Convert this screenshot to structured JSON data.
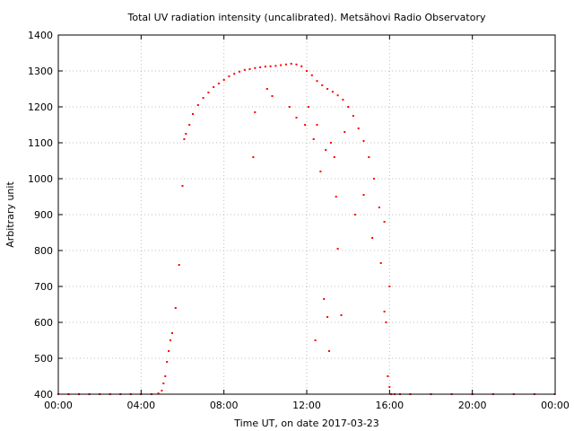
{
  "chart_data": {
    "type": "scatter",
    "title": "Total UV radiation intensity (uncalibrated). Metsähovi Radio Observatory",
    "xlabel": "Time UT, on date 2017-03-23",
    "ylabel": "Arbitrary unit",
    "xlim": [
      "00:00",
      "24:00"
    ],
    "ylim": [
      400,
      1400
    ],
    "xticks": [
      "00:00",
      "04:00",
      "08:00",
      "12:00",
      "16:00",
      "20:00",
      "00:00"
    ],
    "yticks": [
      400,
      500,
      600,
      700,
      800,
      900,
      1000,
      1100,
      1200,
      1300,
      1400
    ],
    "grid": true,
    "legend": "none",
    "marker_color": "#ff0000",
    "series": [
      {
        "x": [
          "00:00",
          "00:30",
          "01:00",
          "01:30",
          "02:00",
          "02:30",
          "03:00",
          "03:30",
          "04:00",
          "04:30",
          "04:50",
          "05:00",
          "05:10",
          "05:20",
          "05:30",
          "05:40",
          "05:50",
          "06:00",
          "06:05",
          "06:10",
          "06:20",
          "06:30",
          "06:45",
          "07:00",
          "07:15",
          "07:30",
          "07:45",
          "08:00",
          "08:15",
          "08:30",
          "08:45",
          "09:00",
          "09:15",
          "09:30",
          "09:45",
          "10:00",
          "10:15",
          "10:30",
          "10:45",
          "11:00",
          "11:15",
          "11:30",
          "11:45",
          "12:00",
          "12:15",
          "12:30",
          "12:45",
          "13:00",
          "13:15",
          "13:30",
          "13:45",
          "14:00",
          "14:15",
          "14:30",
          "14:45",
          "15:00",
          "15:15",
          "15:30",
          "15:45",
          "16:00",
          "16:15",
          "16:30",
          "17:00",
          "18:00",
          "19:00",
          "20:00",
          "21:00",
          "22:00",
          "23:00",
          "23:59",
          "05:05",
          "05:15",
          "05:25",
          "09:25",
          "09:30",
          "10:05",
          "10:20",
          "11:10",
          "11:30",
          "11:55",
          "12:05",
          "12:20",
          "12:25",
          "12:30",
          "12:40",
          "12:50",
          "12:55",
          "13:00",
          "13:05",
          "13:10",
          "13:20",
          "13:25",
          "13:30",
          "13:40",
          "13:50",
          "14:20",
          "14:45",
          "15:10",
          "15:35",
          "15:45",
          "15:50",
          "15:55",
          "16:00",
          "16:05"
        ],
        "y": [
          400,
          400,
          400,
          400,
          400,
          400,
          400,
          400,
          400,
          400,
          402,
          410,
          450,
          520,
          570,
          640,
          760,
          980,
          1110,
          1125,
          1150,
          1180,
          1205,
          1225,
          1240,
          1255,
          1265,
          1275,
          1285,
          1292,
          1298,
          1303,
          1305,
          1308,
          1310,
          1312,
          1313,
          1314,
          1316,
          1318,
          1320,
          1318,
          1313,
          1300,
          1288,
          1272,
          1260,
          1250,
          1242,
          1232,
          1220,
          1200,
          1175,
          1140,
          1105,
          1060,
          1000,
          920,
          880,
          700,
          400,
          400,
          400,
          400,
          400,
          400,
          400,
          400,
          400,
          400,
          430,
          490,
          550,
          1060,
          1185,
          1250,
          1230,
          1200,
          1170,
          1150,
          1200,
          1110,
          550,
          1150,
          1020,
          665,
          1080,
          615,
          520,
          1100,
          1060,
          950,
          805,
          620,
          1130,
          900,
          955,
          835,
          765,
          630,
          600,
          450,
          420,
          400
        ]
      }
    ]
  }
}
